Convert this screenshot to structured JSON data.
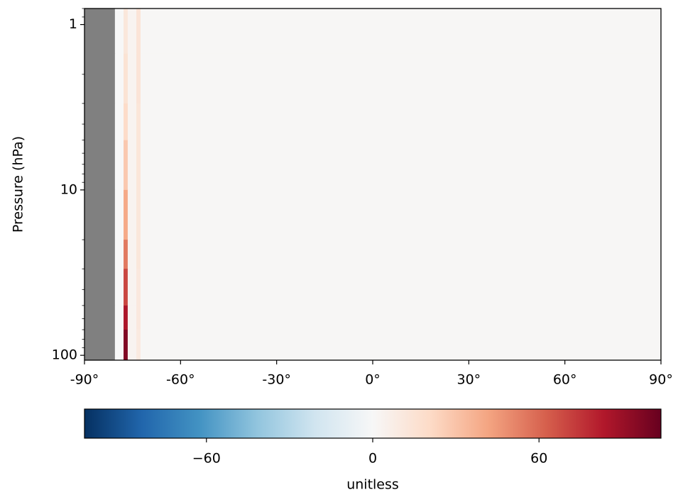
{
  "chart_data": {
    "type": "heatmap",
    "ylabel": "Pressure (hPa)",
    "colorbar_label": "unitless",
    "x_edges": [
      -90,
      -80.5,
      -77.8,
      -76.5,
      -73.8,
      -72.5,
      90
    ],
    "y_edges": [
      0.8,
      1.5,
      3,
      5,
      10,
      20,
      30,
      50,
      70,
      107
    ],
    "z": [
      [
        null,
        0,
        12,
        3,
        14,
        1
      ],
      [
        null,
        0,
        15,
        3,
        14,
        1
      ],
      [
        null,
        0,
        20,
        3,
        13,
        1
      ],
      [
        null,
        0,
        28,
        3,
        13,
        1
      ],
      [
        null,
        0,
        40,
        3,
        12,
        1
      ],
      [
        null,
        0,
        55,
        3,
        12,
        1
      ],
      [
        null,
        0,
        70,
        3,
        11,
        1
      ],
      [
        null,
        0,
        85,
        3,
        11,
        1
      ],
      [
        null,
        0,
        97,
        3,
        10,
        1
      ]
    ],
    "xlim": [
      -90,
      90
    ],
    "xticks": [
      {
        "value": -90,
        "label": "-90°"
      },
      {
        "value": -60,
        "label": "-60°"
      },
      {
        "value": -30,
        "label": "-30°"
      },
      {
        "value": 0,
        "label": "0°"
      },
      {
        "value": 30,
        "label": "30°"
      },
      {
        "value": 60,
        "label": "60°"
      },
      {
        "value": 90,
        "label": "90°"
      }
    ],
    "ylim": [
      107,
      0.8
    ],
    "yticks": [
      1,
      10,
      100
    ],
    "log_y": true,
    "clim": [
      -104,
      104
    ],
    "cticks": [
      {
        "value": -60,
        "label": "−60"
      },
      0,
      60
    ],
    "colors": [
      "#053061",
      "#2166ac",
      "#4393c3",
      "#92c5de",
      "#d1e5f0",
      "#f7f7f7",
      "#fddbc7",
      "#f4a582",
      "#d6604d",
      "#b2182b",
      "#67001f"
    ],
    "nan_color": "#808080"
  }
}
